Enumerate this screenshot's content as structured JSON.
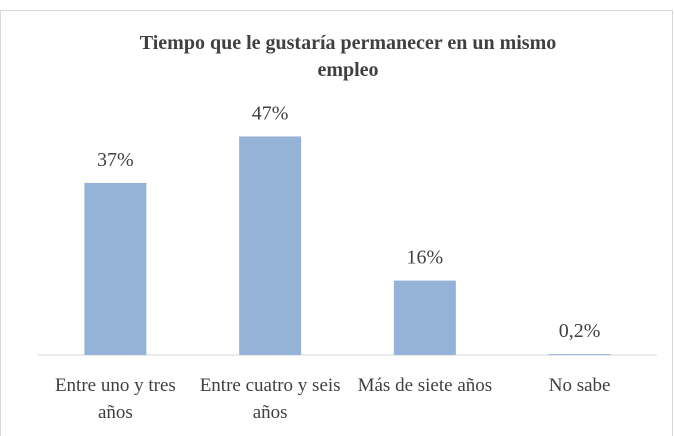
{
  "chart_data": {
    "type": "bar",
    "title": "Tiempo que le gustaría permanecer en un mismo empleo",
    "categories": [
      "Entre uno y tres años",
      "Entre cuatro y seis años",
      "Más de siete años",
      "No sabe"
    ],
    "values": [
      37,
      47,
      16,
      0.2
    ],
    "value_labels": [
      "37%",
      "47%",
      "16%",
      "0,2%"
    ],
    "color": "#95b3d7"
  }
}
